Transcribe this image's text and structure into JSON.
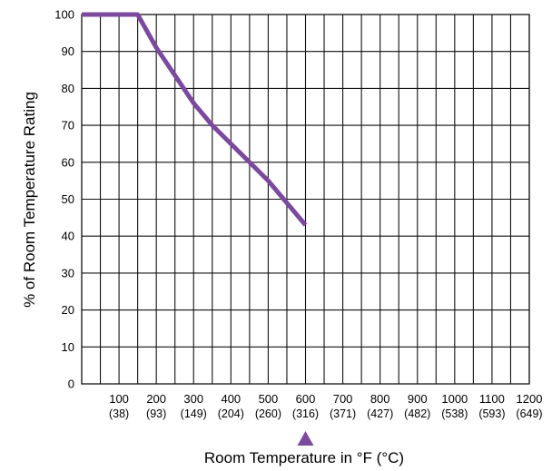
{
  "chart_data": {
    "type": "line",
    "xlabel": "Room Temperature in °F (°C)",
    "ylabel": "% of Room Temperature Rating",
    "xlim": [
      0,
      1200
    ],
    "ylim": [
      0,
      100
    ],
    "grid": true,
    "x_ticks": [
      {
        "value": 100,
        "label": "100",
        "sublabel": "(38)"
      },
      {
        "value": 200,
        "label": "200",
        "sublabel": "(93)"
      },
      {
        "value": 300,
        "label": "300",
        "sublabel": "(149)"
      },
      {
        "value": 400,
        "label": "400",
        "sublabel": "(204)"
      },
      {
        "value": 500,
        "label": "500",
        "sublabel": "(260)"
      },
      {
        "value": 600,
        "label": "600",
        "sublabel": "(316)"
      },
      {
        "value": 700,
        "label": "700",
        "sublabel": "(371)"
      },
      {
        "value": 800,
        "label": "800",
        "sublabel": "(427)"
      },
      {
        "value": 900,
        "label": "900",
        "sublabel": "(482)"
      },
      {
        "value": 1000,
        "label": "1000",
        "sublabel": "(538)"
      },
      {
        "value": 1100,
        "label": "1100",
        "sublabel": "(593)"
      },
      {
        "value": 1200,
        "label": "1200",
        "sublabel": "(649)"
      }
    ],
    "y_ticks": [
      0,
      10,
      20,
      30,
      40,
      50,
      60,
      70,
      80,
      90,
      100
    ],
    "series": [
      {
        "color": "#7b4a9e",
        "points": [
          {
            "x": 0,
            "y": 100
          },
          {
            "x": 150,
            "y": 100
          },
          {
            "x": 200,
            "y": 91
          },
          {
            "x": 300,
            "y": 76
          },
          {
            "x": 350,
            "y": 70
          },
          {
            "x": 400,
            "y": 65
          },
          {
            "x": 500,
            "y": 55
          },
          {
            "x": 600,
            "y": 43
          }
        ]
      }
    ],
    "marker": {
      "x": 600,
      "shape": "triangle-up",
      "color": "#7b4a9e"
    }
  }
}
